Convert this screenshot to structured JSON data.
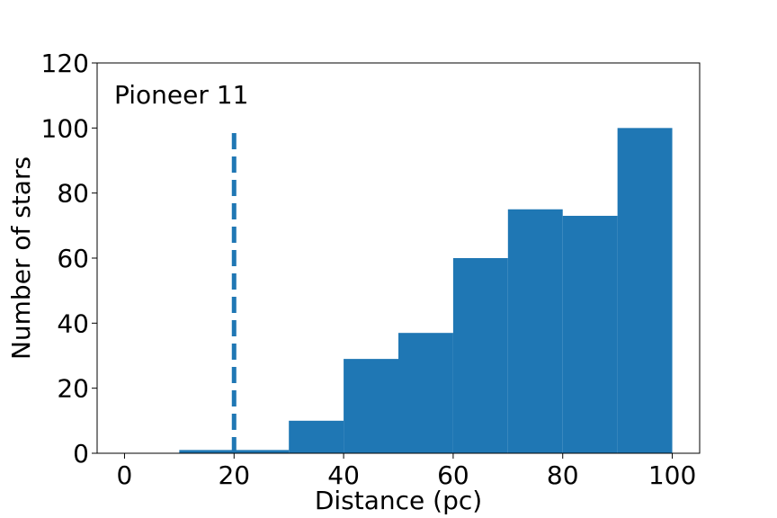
{
  "chart_data": {
    "type": "bar",
    "subtype": "histogram",
    "annotation": "Pioneer 11",
    "xlabel": "Distance (pc)",
    "ylabel": "Number of stars",
    "xlim": [
      -5,
      105
    ],
    "ylim": [
      0,
      120
    ],
    "xticks": [
      0,
      20,
      40,
      60,
      80,
      100
    ],
    "yticks": [
      0,
      20,
      40,
      60,
      80,
      100,
      120
    ],
    "bins": [
      {
        "start": 10,
        "end": 20,
        "count": 1
      },
      {
        "start": 20,
        "end": 30,
        "count": 1
      },
      {
        "start": 30,
        "end": 40,
        "count": 10
      },
      {
        "start": 40,
        "end": 50,
        "count": 29
      },
      {
        "start": 50,
        "end": 60,
        "count": 37
      },
      {
        "start": 60,
        "end": 70,
        "count": 60
      },
      {
        "start": 70,
        "end": 80,
        "count": 75
      },
      {
        "start": 80,
        "end": 90,
        "count": 73
      },
      {
        "start": 90,
        "end": 100,
        "count": 100
      }
    ],
    "reference_line": {
      "x": 20,
      "y_top": 100,
      "style": "dashed"
    },
    "bar_color": "#1f77b4",
    "line_color": "#1f77b4",
    "grid": false,
    "legend": "none"
  }
}
